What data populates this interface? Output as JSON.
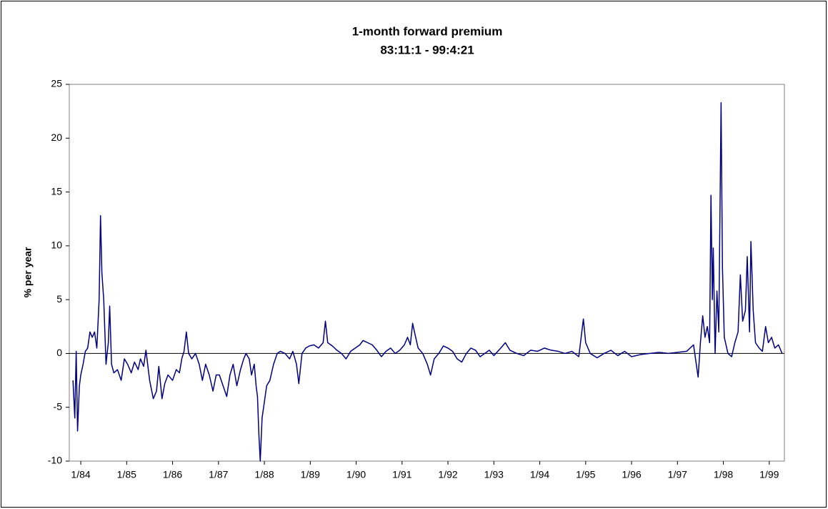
{
  "chart_data": {
    "type": "line",
    "title": "1-month forward premium",
    "subtitle": "83:11:1 - 99:4:21",
    "y_label": "% per year",
    "xlim": [
      1983.75,
      1999.33
    ],
    "xticks": [
      {
        "value": 1984,
        "label": "1/84"
      },
      {
        "value": 1985,
        "label": "1/85"
      },
      {
        "value": 1986,
        "label": "1/86"
      },
      {
        "value": 1987,
        "label": "1/87"
      },
      {
        "value": 1988,
        "label": "1/88"
      },
      {
        "value": 1989,
        "label": "1/89"
      },
      {
        "value": 1990,
        "label": "1/90"
      },
      {
        "value": 1991,
        "label": "1/91"
      },
      {
        "value": 1992,
        "label": "1/92"
      },
      {
        "value": 1993,
        "label": "1/93"
      },
      {
        "value": 1994,
        "label": "1/94"
      },
      {
        "value": 1995,
        "label": "1/95"
      },
      {
        "value": 1996,
        "label": "1/96"
      },
      {
        "value": 1997,
        "label": "1/97"
      },
      {
        "value": 1998,
        "label": "1/98"
      },
      {
        "value": 1999,
        "label": "1/99"
      }
    ],
    "ylim": [
      -10,
      25
    ],
    "yticks": [
      -10,
      -5,
      0,
      5,
      10,
      15,
      20,
      25
    ],
    "grid": false,
    "x": [
      1983.83,
      1983.87,
      1983.9,
      1983.93,
      1983.97,
      1984.0,
      1984.05,
      1984.1,
      1984.15,
      1984.2,
      1984.25,
      1984.3,
      1984.35,
      1984.4,
      1984.43,
      1984.46,
      1984.5,
      1984.55,
      1984.6,
      1984.63,
      1984.67,
      1984.72,
      1984.8,
      1984.88,
      1984.95,
      1985.02,
      1985.1,
      1985.17,
      1985.25,
      1985.3,
      1985.37,
      1985.42,
      1985.5,
      1985.58,
      1985.65,
      1985.7,
      1985.77,
      1985.83,
      1985.9,
      1986.0,
      1986.08,
      1986.15,
      1986.2,
      1986.25,
      1986.3,
      1986.35,
      1986.42,
      1986.5,
      1986.58,
      1986.65,
      1986.72,
      1986.8,
      1986.88,
      1986.95,
      1987.02,
      1987.1,
      1987.18,
      1987.25,
      1987.32,
      1987.4,
      1987.48,
      1987.55,
      1987.6,
      1987.67,
      1987.72,
      1987.78,
      1987.82,
      1987.85,
      1987.88,
      1987.91,
      1987.95,
      1988.0,
      1988.05,
      1988.12,
      1988.2,
      1988.28,
      1988.35,
      1988.45,
      1988.55,
      1988.62,
      1988.7,
      1988.75,
      1988.82,
      1988.9,
      1988.98,
      1989.08,
      1989.18,
      1989.28,
      1989.33,
      1989.38,
      1989.48,
      1989.58,
      1989.68,
      1989.78,
      1989.88,
      1989.98,
      1990.08,
      1990.15,
      1990.25,
      1990.35,
      1990.45,
      1990.55,
      1990.65,
      1990.75,
      1990.85,
      1990.95,
      1991.05,
      1991.12,
      1991.18,
      1991.23,
      1991.28,
      1991.35,
      1991.45,
      1991.55,
      1991.62,
      1991.7,
      1991.8,
      1991.9,
      1992.0,
      1992.1,
      1992.2,
      1992.3,
      1992.4,
      1992.5,
      1992.6,
      1992.7,
      1992.8,
      1992.9,
      1993.0,
      1993.15,
      1993.25,
      1993.35,
      1993.5,
      1993.65,
      1993.8,
      1993.95,
      1994.1,
      1994.25,
      1994.4,
      1994.55,
      1994.7,
      1994.85,
      1994.95,
      1995.0,
      1995.1,
      1995.25,
      1995.4,
      1995.55,
      1995.7,
      1995.85,
      1996.0,
      1996.2,
      1996.4,
      1996.6,
      1996.8,
      1997.0,
      1997.2,
      1997.35,
      1997.45,
      1997.5,
      1997.55,
      1997.6,
      1997.65,
      1997.7,
      1997.73,
      1997.76,
      1997.78,
      1997.82,
      1997.86,
      1997.9,
      1997.95,
      1997.98,
      1998.02,
      1998.1,
      1998.18,
      1998.25,
      1998.32,
      1998.37,
      1998.42,
      1998.48,
      1998.52,
      1998.57,
      1998.6,
      1998.65,
      1998.7,
      1998.78,
      1998.85,
      1998.92,
      1998.98,
      1999.05,
      1999.12,
      1999.2,
      1999.28
    ],
    "series": [
      {
        "name": "forward premium",
        "color": "#000080",
        "values": [
          -2.5,
          -6,
          0.2,
          -7.2,
          -3,
          -2,
          -1,
          0.2,
          0.5,
          2,
          1.5,
          2,
          0.5,
          5,
          12.8,
          7.5,
          5,
          -1,
          1,
          4.4,
          -1,
          -1.8,
          -1.5,
          -2.5,
          -0.5,
          -1,
          -1.8,
          -0.8,
          -1.5,
          -0.5,
          -1.2,
          0.3,
          -2.5,
          -4.2,
          -3.5,
          -1.2,
          -4.2,
          -2.8,
          -2,
          -2.5,
          -1.5,
          -1.8,
          -0.5,
          0.2,
          2,
          0,
          -0.5,
          0,
          -1,
          -2.5,
          -1,
          -2,
          -3.5,
          -2,
          -2,
          -3,
          -4,
          -2,
          -1,
          -3,
          -1.5,
          -0.5,
          0,
          -0.5,
          -2,
          -1,
          -3,
          -4,
          -7.5,
          -10,
          -6,
          -4.5,
          -3,
          -2.5,
          -1,
          0,
          0.2,
          0,
          -0.5,
          0.2,
          -1,
          -2.8,
          0,
          0.5,
          0.7,
          0.8,
          0.5,
          1,
          3,
          1,
          0.7,
          0.3,
          0,
          -0.5,
          0.2,
          0.5,
          0.8,
          1.2,
          1,
          0.8,
          0.3,
          -0.3,
          0.2,
          0.5,
          0,
          0.3,
          0.8,
          1.5,
          0.8,
          2.8,
          1.8,
          0.5,
          0,
          -1,
          -2,
          -0.5,
          0,
          0.7,
          0.5,
          0.2,
          -0.5,
          -0.8,
          0,
          0.5,
          0.3,
          -0.3,
          0,
          0.3,
          -0.2,
          0.5,
          1,
          0.3,
          0,
          -0.2,
          0.3,
          0.2,
          0.5,
          0.3,
          0.2,
          0,
          0.2,
          -0.3,
          3.2,
          1,
          0,
          -0.4,
          0,
          0.3,
          -0.2,
          0.2,
          -0.3,
          -0.1,
          0,
          0.1,
          0,
          0.1,
          0.2,
          0.8,
          -2.2,
          1,
          3.5,
          1.5,
          2.5,
          1,
          14.7,
          5,
          9.8,
          0,
          5.8,
          2,
          23.3,
          8,
          1.5,
          0,
          -0.3,
          1,
          2,
          7.3,
          3,
          4,
          9,
          2,
          10.4,
          4,
          1,
          0.5,
          0.2,
          2.5,
          1,
          1.5,
          0.5,
          0.8,
          0
        ]
      }
    ]
  }
}
